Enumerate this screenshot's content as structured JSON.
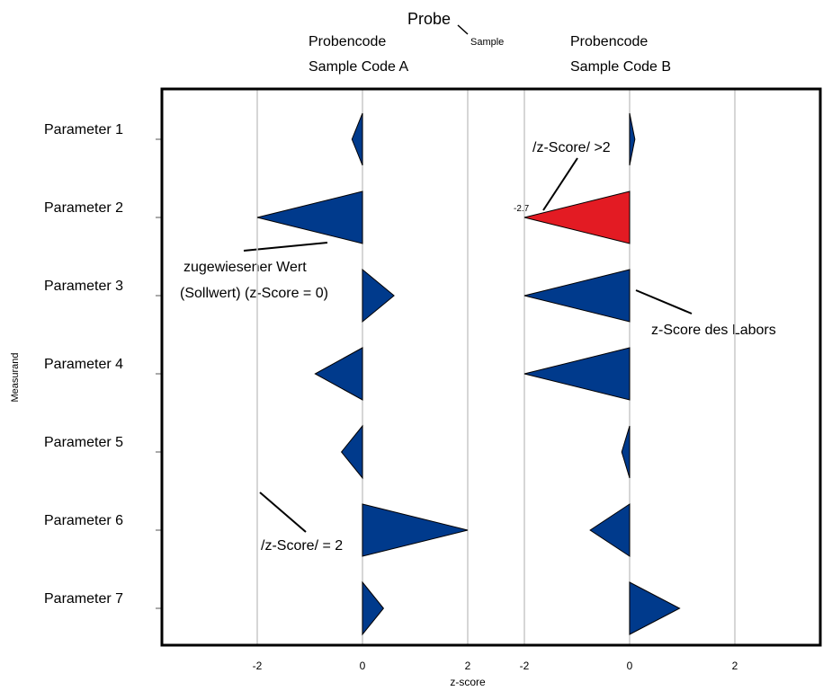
{
  "chart_data": {
    "type": "bar",
    "ylabel": "Measurand",
    "xlabel": "z-score",
    "header": {
      "probe": "Probe",
      "sample": "Sample",
      "panel_a_line1": "Probencode",
      "panel_a_line2": "Sample Code A",
      "panel_b_line1": "Probencode",
      "panel_b_line2": "Sample Code B"
    },
    "categories": [
      "Parameter 1",
      "Parameter 2",
      "Parameter 3",
      "Parameter 4",
      "Parameter 5",
      "Parameter 6",
      "Parameter 7"
    ],
    "panels": [
      {
        "name": "Sample Code A",
        "values": [
          -0.2,
          -2.0,
          0.6,
          -0.9,
          -0.4,
          2.0,
          0.4
        ],
        "xticks": [
          "-2",
          "0",
          "2"
        ]
      },
      {
        "name": "Sample Code B",
        "values": [
          0.1,
          -2.0,
          -2.0,
          -2.0,
          -0.15,
          -0.75,
          0.95
        ],
        "xticks": [
          "-2",
          "0",
          "2"
        ]
      }
    ],
    "colors": {
      "normal": "#003a8c",
      "outlier": "#e31b23"
    },
    "annotations": {
      "outlier": "/z-Score/ >2",
      "outlier_value": "-2.7",
      "assigned_value_line1": "zugewiesener Wert",
      "assigned_value_line2": "(Sollwert) (z-Score = 0)",
      "lab_zscore": "z-Score des Labors",
      "abs_z2": "/z-Score/ = 2"
    }
  }
}
